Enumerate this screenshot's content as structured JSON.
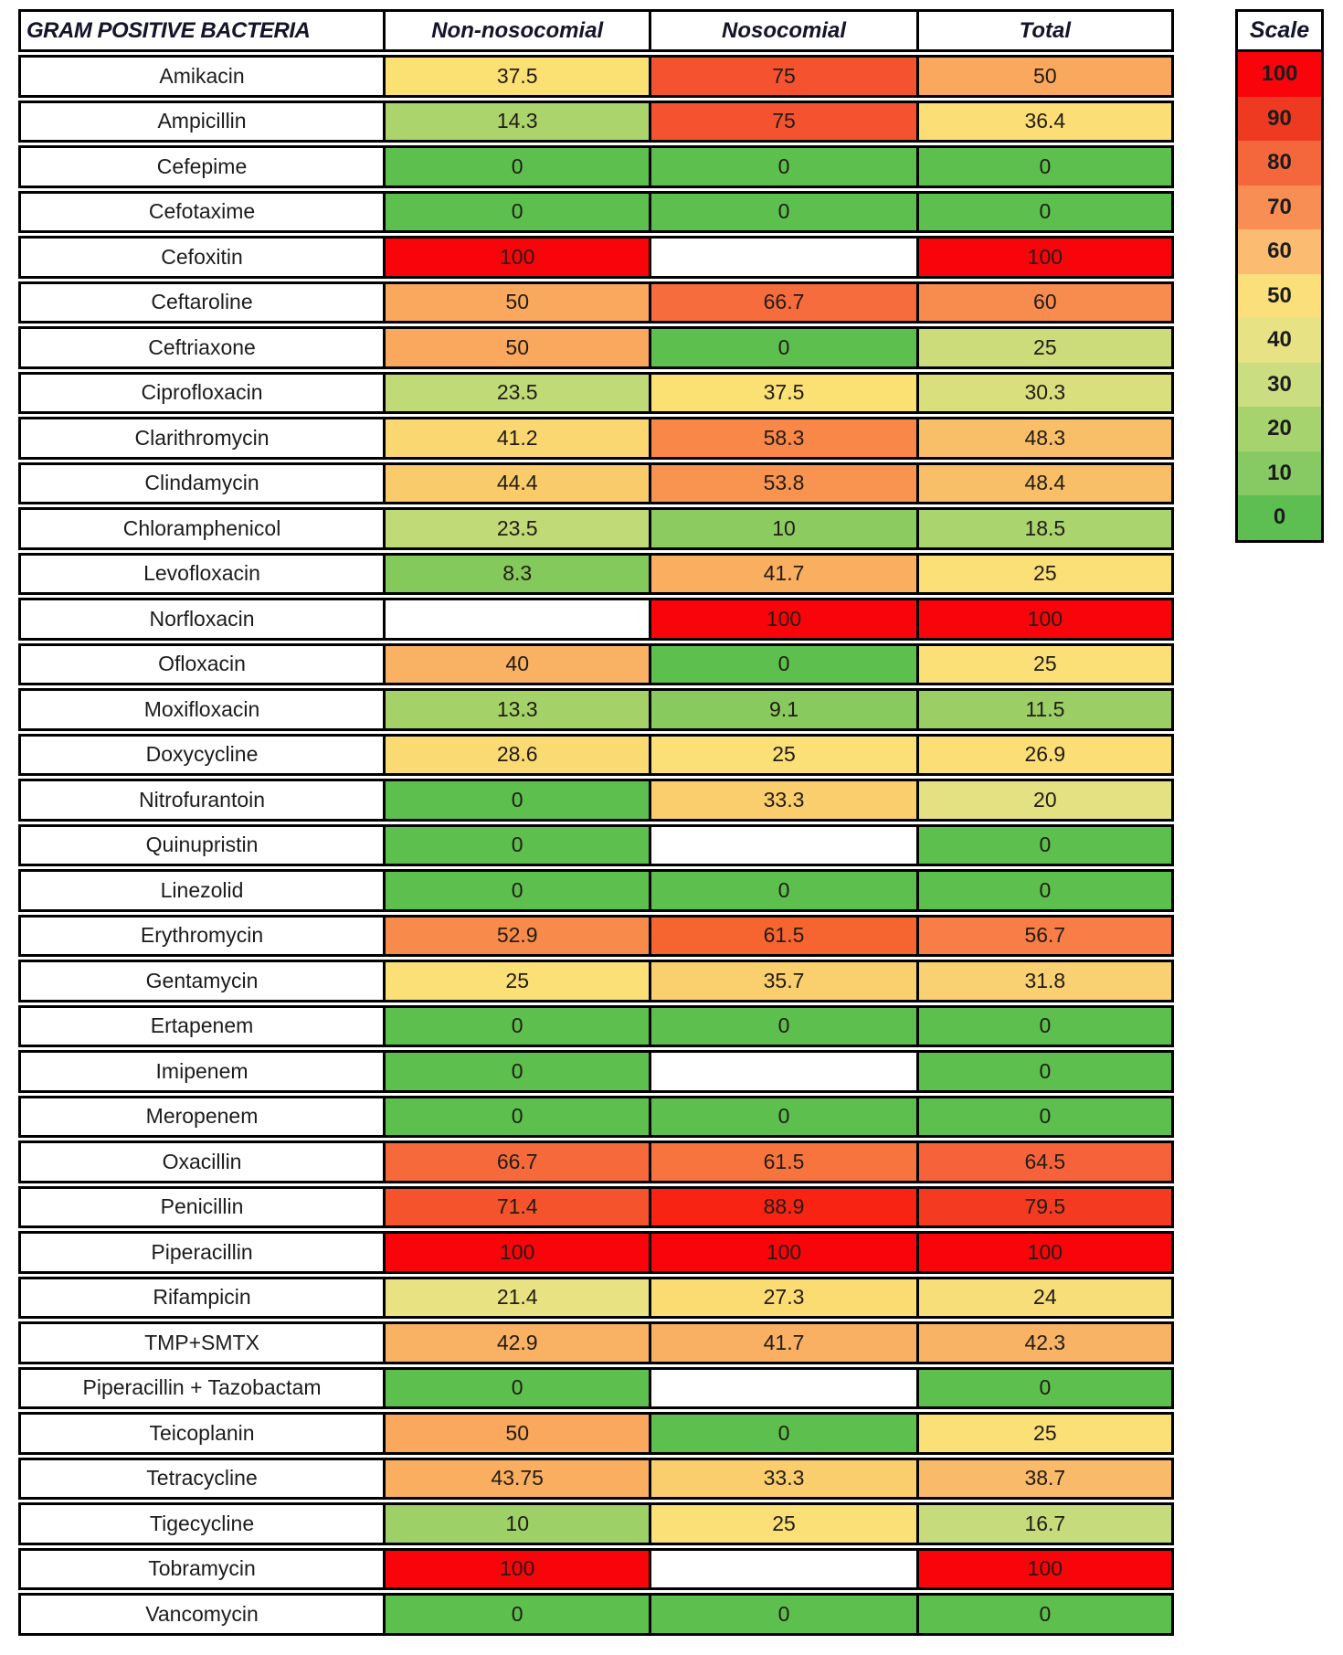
{
  "chart_data": {
    "type": "heatmap",
    "corner_label": "GRAM POSITIVE BACTERIA",
    "columns": [
      "Non-nosocomial",
      "Nosocomial",
      "Total"
    ],
    "rows": [
      "Amikacin",
      "Ampicillin",
      "Cefepime",
      "Cefotaxime",
      "Cefoxitin",
      "Ceftaroline",
      "Ceftriaxone",
      "Ciprofloxacin",
      "Clarithromycin",
      "Clindamycin",
      "Chloramphenicol",
      "Levofloxacin",
      "Norfloxacin",
      "Ofloxacin",
      "Moxifloxacin",
      "Doxycycline",
      "Nitrofurantoin",
      "Quinupristin",
      "Linezolid",
      "Erythromycin",
      "Gentamycin",
      "Ertapenem",
      "Imipenem",
      "Meropenem",
      "Oxacillin",
      "Penicillin",
      "Piperacillin",
      "Rifampicin",
      "TMP+SMTX",
      "Piperacillin + Tazobactam",
      "Teicoplanin",
      "Tetracycline",
      "Tigecycline",
      "Tobramycin",
      "Vancomycin"
    ],
    "values": [
      [
        37.5,
        75,
        50
      ],
      [
        14.3,
        75,
        36.4
      ],
      [
        0,
        0,
        0
      ],
      [
        0,
        0,
        0
      ],
      [
        100,
        null,
        100
      ],
      [
        50,
        66.7,
        60
      ],
      [
        50,
        0,
        25
      ],
      [
        23.5,
        37.5,
        30.3
      ],
      [
        41.2,
        58.3,
        48.3
      ],
      [
        44.4,
        53.8,
        48.4
      ],
      [
        23.5,
        10,
        18.5
      ],
      [
        8.3,
        41.7,
        25
      ],
      [
        null,
        100,
        100
      ],
      [
        40,
        0,
        25
      ],
      [
        13.3,
        9.1,
        11.5
      ],
      [
        28.6,
        25,
        26.9
      ],
      [
        0,
        33.3,
        20
      ],
      [
        0,
        null,
        0
      ],
      [
        0,
        0,
        0
      ],
      [
        52.9,
        61.5,
        56.7
      ],
      [
        25,
        35.7,
        31.8
      ],
      [
        0,
        0,
        0
      ],
      [
        0,
        null,
        0
      ],
      [
        0,
        0,
        0
      ],
      [
        66.7,
        61.5,
        64.5
      ],
      [
        71.4,
        88.9,
        79.5
      ],
      [
        100,
        100,
        100
      ],
      [
        21.4,
        27.3,
        24
      ],
      [
        42.9,
        41.7,
        42.3
      ],
      [
        0,
        null,
        0
      ],
      [
        50,
        0,
        25
      ],
      [
        43.75,
        33.3,
        38.7
      ],
      [
        10,
        25,
        16.7
      ],
      [
        100,
        null,
        100
      ],
      [
        0,
        0,
        0
      ]
    ],
    "cell_colors": [
      [
        "#FBE074",
        "#F55330",
        "#F9A85D"
      ],
      [
        "#ACD46C",
        "#F55330",
        "#FBDF76"
      ],
      [
        "#5CBF4E",
        "#5CBF4E",
        "#5CBF4E"
      ],
      [
        "#5CBF4E",
        "#5CBF4E",
        "#5CBF4E"
      ],
      [
        "#FA040B",
        "#FFFFFF",
        "#FA040B"
      ],
      [
        "#F9A85D",
        "#F66C3C",
        "#F88C4F"
      ],
      [
        "#F9A85D",
        "#5CBF4E",
        "#CDDC7B"
      ],
      [
        "#C0DA77",
        "#FBE074",
        "#DADF7E"
      ],
      [
        "#FAD770",
        "#F88748",
        "#F9BF68"
      ],
      [
        "#FACB6A",
        "#F89450",
        "#F9BF68"
      ],
      [
        "#C0DA77",
        "#8BCB5F",
        "#AAD46E"
      ],
      [
        "#84C95C",
        "#F9AE60",
        "#FBE077"
      ],
      [
        "#FFFFFF",
        "#FA040B",
        "#FA040B"
      ],
      [
        "#F9B263",
        "#5CBF4E",
        "#FBE077"
      ],
      [
        "#A4D268",
        "#89CA5E",
        "#9BCF66"
      ],
      [
        "#FADB73",
        "#FBE077",
        "#FBDE76"
      ],
      [
        "#5CBF4E",
        "#FACD6D",
        "#E3E181"
      ],
      [
        "#5CBF4E",
        "#FFFFFF",
        "#5CBF4E"
      ],
      [
        "#5CBF4E",
        "#5CBF4E",
        "#5CBF4E"
      ],
      [
        "#F88A4B",
        "#F66430",
        "#F87D46"
      ],
      [
        "#FBE077",
        "#FAD06E",
        "#FAD172"
      ],
      [
        "#5CBF4E",
        "#5CBF4E",
        "#5CBF4E"
      ],
      [
        "#5CBF4E",
        "#FFFFFF",
        "#5CBF4E"
      ],
      [
        "#5CBF4E",
        "#5CBF4E",
        "#5CBF4E"
      ],
      [
        "#F6693B",
        "#F7743F",
        "#F6633A"
      ],
      [
        "#F5532C",
        "#F82313",
        "#F43A20"
      ],
      [
        "#FA040B",
        "#FA040B",
        "#FA040B"
      ],
      [
        "#E9E282",
        "#FBDC73",
        "#F8DE79"
      ],
      [
        "#F9B164",
        "#F9B062",
        "#F9B365"
      ],
      [
        "#5CBF4E",
        "#FFFFFF",
        "#5CBF4E"
      ],
      [
        "#F9A85D",
        "#5CBF4E",
        "#FBE077"
      ],
      [
        "#F9AE60",
        "#FACD6D",
        "#F9BA6A"
      ],
      [
        "#9DD066",
        "#FBE077",
        "#C6DB7C"
      ],
      [
        "#FA040B",
        "#FFFFFF",
        "#FA040B"
      ],
      [
        "#5CBF4E",
        "#5CBF4E",
        "#5CBF4E"
      ]
    ],
    "value_range": [
      0,
      100
    ],
    "legend": {
      "title": "Scale",
      "position": "right",
      "ticks": [
        100,
        90,
        80,
        70,
        60,
        50,
        40,
        30,
        20,
        10,
        0
      ],
      "colors": [
        "#FA040B",
        "#EF3A22",
        "#F4673D",
        "#F98E54",
        "#FBBC72",
        "#FBDF7A",
        "#E7E283",
        "#CADD80",
        "#A7D36F",
        "#87CA63",
        "#5DBF52"
      ]
    }
  }
}
